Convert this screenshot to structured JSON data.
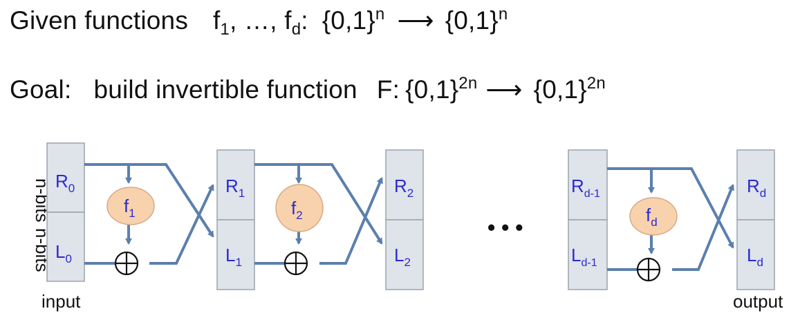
{
  "header": {
    "given_label": "Given functions",
    "f_sym": "f",
    "sub_1": "1",
    "sep": ", …, ",
    "sub_d": "d",
    "colon": ":",
    "domain": "{0,1}",
    "exp_n": "n",
    "arrow": "⟶",
    "range": "{0,1}"
  },
  "goal": {
    "goal_label": "Goal:",
    "build_text": "build invertible function",
    "F_label": "F:",
    "domain": "{0,1}",
    "exp_2n": "2n",
    "arrow": "⟶",
    "range": "{0,1}"
  },
  "diagram": {
    "bits_label": "n-bits",
    "input_label": "input",
    "output_label": "output",
    "ellipsis": "• • •",
    "R": "R",
    "L": "L",
    "f": "f",
    "xor_symbol": "⊕",
    "sub_0": "0",
    "sub_1": "1",
    "sub_2": "2",
    "sub_d1": "d-1",
    "sub_d": "d"
  },
  "colors": {
    "block_fill": "#dfe3ea",
    "wire": "#5b7fae",
    "oval_fill": "#f8d2ad",
    "label_blue": "#2a2ad0"
  }
}
